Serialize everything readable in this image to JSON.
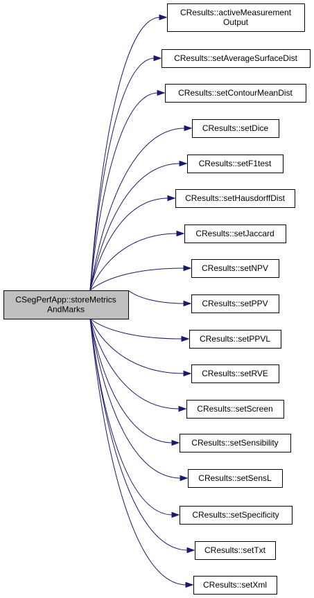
{
  "diagram": {
    "type": "call-graph",
    "source": {
      "id": "root",
      "label_lines": [
        "CSegPerfApp::storeMetrics",
        "AndMarks"
      ]
    },
    "targets": [
      {
        "id": "activeMeasurementOutput",
        "label_lines": [
          "CResults::activeMeasurement",
          "Output"
        ]
      },
      {
        "id": "setAverageSurfaceDist",
        "label_lines": [
          "CResults::setAverageSurfaceDist"
        ]
      },
      {
        "id": "setContourMeanDist",
        "label_lines": [
          "CResults::setContourMeanDist"
        ]
      },
      {
        "id": "setDice",
        "label_lines": [
          "CResults::setDice"
        ]
      },
      {
        "id": "setF1test",
        "label_lines": [
          "CResults::setF1test"
        ]
      },
      {
        "id": "setHausdorffDist",
        "label_lines": [
          "CResults::setHausdorffDist"
        ]
      },
      {
        "id": "setJaccard",
        "label_lines": [
          "CResults::setJaccard"
        ]
      },
      {
        "id": "setNPV",
        "label_lines": [
          "CResults::setNPV"
        ]
      },
      {
        "id": "setPPV",
        "label_lines": [
          "CResults::setPPV"
        ]
      },
      {
        "id": "setPPVL",
        "label_lines": [
          "CResults::setPPVL"
        ]
      },
      {
        "id": "setRVE",
        "label_lines": [
          "CResults::setRVE"
        ]
      },
      {
        "id": "setScreen",
        "label_lines": [
          "CResults::setScreen"
        ]
      },
      {
        "id": "setSensibility",
        "label_lines": [
          "CResults::setSensibility"
        ]
      },
      {
        "id": "setSensL",
        "label_lines": [
          "CResults::setSensL"
        ]
      },
      {
        "id": "setSpecificity",
        "label_lines": [
          "CResults::setSpecificity"
        ]
      },
      {
        "id": "setTxt",
        "label_lines": [
          "CResults::setTxt"
        ]
      },
      {
        "id": "setXml",
        "label_lines": [
          "CResults::setXml"
        ]
      }
    ],
    "colors": {
      "edge": "#191970",
      "root_fill": "#bfbfbf",
      "node_fill": "#ffffff",
      "border": "#000000"
    }
  }
}
